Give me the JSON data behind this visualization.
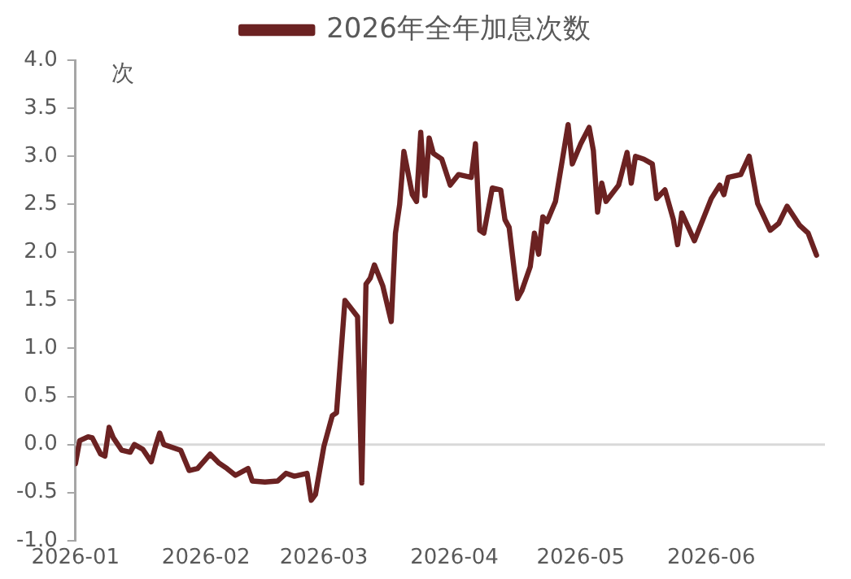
{
  "chart_data": {
    "type": "line",
    "ylabel": "次",
    "legend": "top",
    "grid": false,
    "line_style": "solid",
    "marker": "none",
    "xlim": [
      "2026-01-01",
      "2026-06-28"
    ],
    "xticks": [
      "2026-01",
      "2026-02",
      "2026-03",
      "2026-04",
      "2026-05",
      "2026-06"
    ],
    "ylim": [
      -1,
      4
    ],
    "yticks": [
      {
        "value": -1,
        "label": "-1.0"
      },
      {
        "value": -0.5,
        "label": "-0.5"
      },
      {
        "value": 0,
        "label": "0.0"
      },
      {
        "value": 0.5,
        "label": "0.5"
      },
      {
        "value": 1,
        "label": "1.0"
      },
      {
        "value": 1.5,
        "label": "1.5"
      },
      {
        "value": 2,
        "label": "2.0"
      },
      {
        "value": 2.5,
        "label": "2.5"
      },
      {
        "value": 3,
        "label": "3.0"
      },
      {
        "value": 3.5,
        "label": "3.5"
      },
      {
        "value": 4,
        "label": "4.0"
      }
    ],
    "ref_lines": [
      {
        "axis": "y",
        "value": 0,
        "color": "#d9d9d9"
      }
    ],
    "x": [
      "2026-01-01",
      "2026-01-02",
      "2026-01-04",
      "2026-01-05",
      "2026-01-07",
      "2026-01-08",
      "2026-01-09",
      "2026-01-10",
      "2026-01-12",
      "2026-01-14",
      "2026-01-15",
      "2026-01-17",
      "2026-01-19",
      "2026-01-20",
      "2026-01-21",
      "2026-01-22",
      "2026-01-26",
      "2026-01-28",
      "2026-01-30",
      "2026-02-02",
      "2026-02-04",
      "2026-02-06",
      "2026-02-08",
      "2026-02-11",
      "2026-02-12",
      "2026-02-15",
      "2026-02-18",
      "2026-02-20",
      "2026-02-22",
      "2026-02-25",
      "2026-02-26",
      "2026-02-27",
      "2026-03-01",
      "2026-03-03",
      "2026-03-04",
      "2026-03-06",
      "2026-03-09",
      "2026-03-10",
      "2026-03-11",
      "2026-03-12",
      "2026-03-13",
      "2026-03-15",
      "2026-03-17",
      "2026-03-18",
      "2026-03-19",
      "2026-03-20",
      "2026-03-22",
      "2026-03-23",
      "2026-03-24",
      "2026-03-25",
      "2026-03-26",
      "2026-03-27",
      "2026-03-29",
      "2026-03-31",
      "2026-04-02",
      "2026-04-05",
      "2026-04-06",
      "2026-04-07",
      "2026-04-08",
      "2026-04-10",
      "2026-04-12",
      "2026-04-13",
      "2026-04-14",
      "2026-04-16",
      "2026-04-17",
      "2026-04-19",
      "2026-04-20",
      "2026-04-21",
      "2026-04-22",
      "2026-04-23",
      "2026-04-25",
      "2026-04-27",
      "2026-04-28",
      "2026-04-29",
      "2026-05-01",
      "2026-05-03",
      "2026-05-04",
      "2026-05-05",
      "2026-05-06",
      "2026-05-07",
      "2026-05-10",
      "2026-05-12",
      "2026-05-13",
      "2026-05-14",
      "2026-05-16",
      "2026-05-18",
      "2026-05-19",
      "2026-05-21",
      "2026-05-23",
      "2026-05-24",
      "2026-05-25",
      "2026-05-28",
      "2026-06-01",
      "2026-06-03",
      "2026-06-04",
      "2026-06-05",
      "2026-06-08",
      "2026-06-10",
      "2026-06-12",
      "2026-06-15",
      "2026-06-17",
      "2026-06-19",
      "2026-06-22",
      "2026-06-24",
      "2026-06-26"
    ],
    "series": [
      {
        "name": "2026年全年加息次数",
        "color": "#6b2222",
        "values": [
          -0.2,
          0.04,
          0.08,
          0.07,
          -0.1,
          -0.12,
          0.18,
          0.07,
          -0.06,
          -0.08,
          0.0,
          -0.05,
          -0.18,
          -0.02,
          0.12,
          0.0,
          -0.06,
          -0.27,
          -0.25,
          -0.1,
          -0.19,
          -0.25,
          -0.32,
          -0.25,
          -0.38,
          -0.39,
          -0.38,
          -0.3,
          -0.33,
          -0.3,
          -0.58,
          -0.52,
          -0.02,
          0.3,
          0.33,
          1.5,
          1.33,
          -0.4,
          1.67,
          1.73,
          1.87,
          1.65,
          1.28,
          2.2,
          2.5,
          3.05,
          2.6,
          2.53,
          3.25,
          2.59,
          3.19,
          3.03,
          2.97,
          2.7,
          2.81,
          2.78,
          3.13,
          2.23,
          2.2,
          2.67,
          2.65,
          2.34,
          2.26,
          1.52,
          1.6,
          1.85,
          2.2,
          1.98,
          2.37,
          2.32,
          2.53,
          3.06,
          3.33,
          2.92,
          3.13,
          3.3,
          3.06,
          2.42,
          2.72,
          2.53,
          2.7,
          3.04,
          2.72,
          3.0,
          2.97,
          2.92,
          2.56,
          2.65,
          2.34,
          2.08,
          2.41,
          2.12,
          2.56,
          2.7,
          2.6,
          2.78,
          2.81,
          3.0,
          2.51,
          2.23,
          2.3,
          2.48,
          2.28,
          2.2,
          1.97
        ]
      }
    ]
  }
}
